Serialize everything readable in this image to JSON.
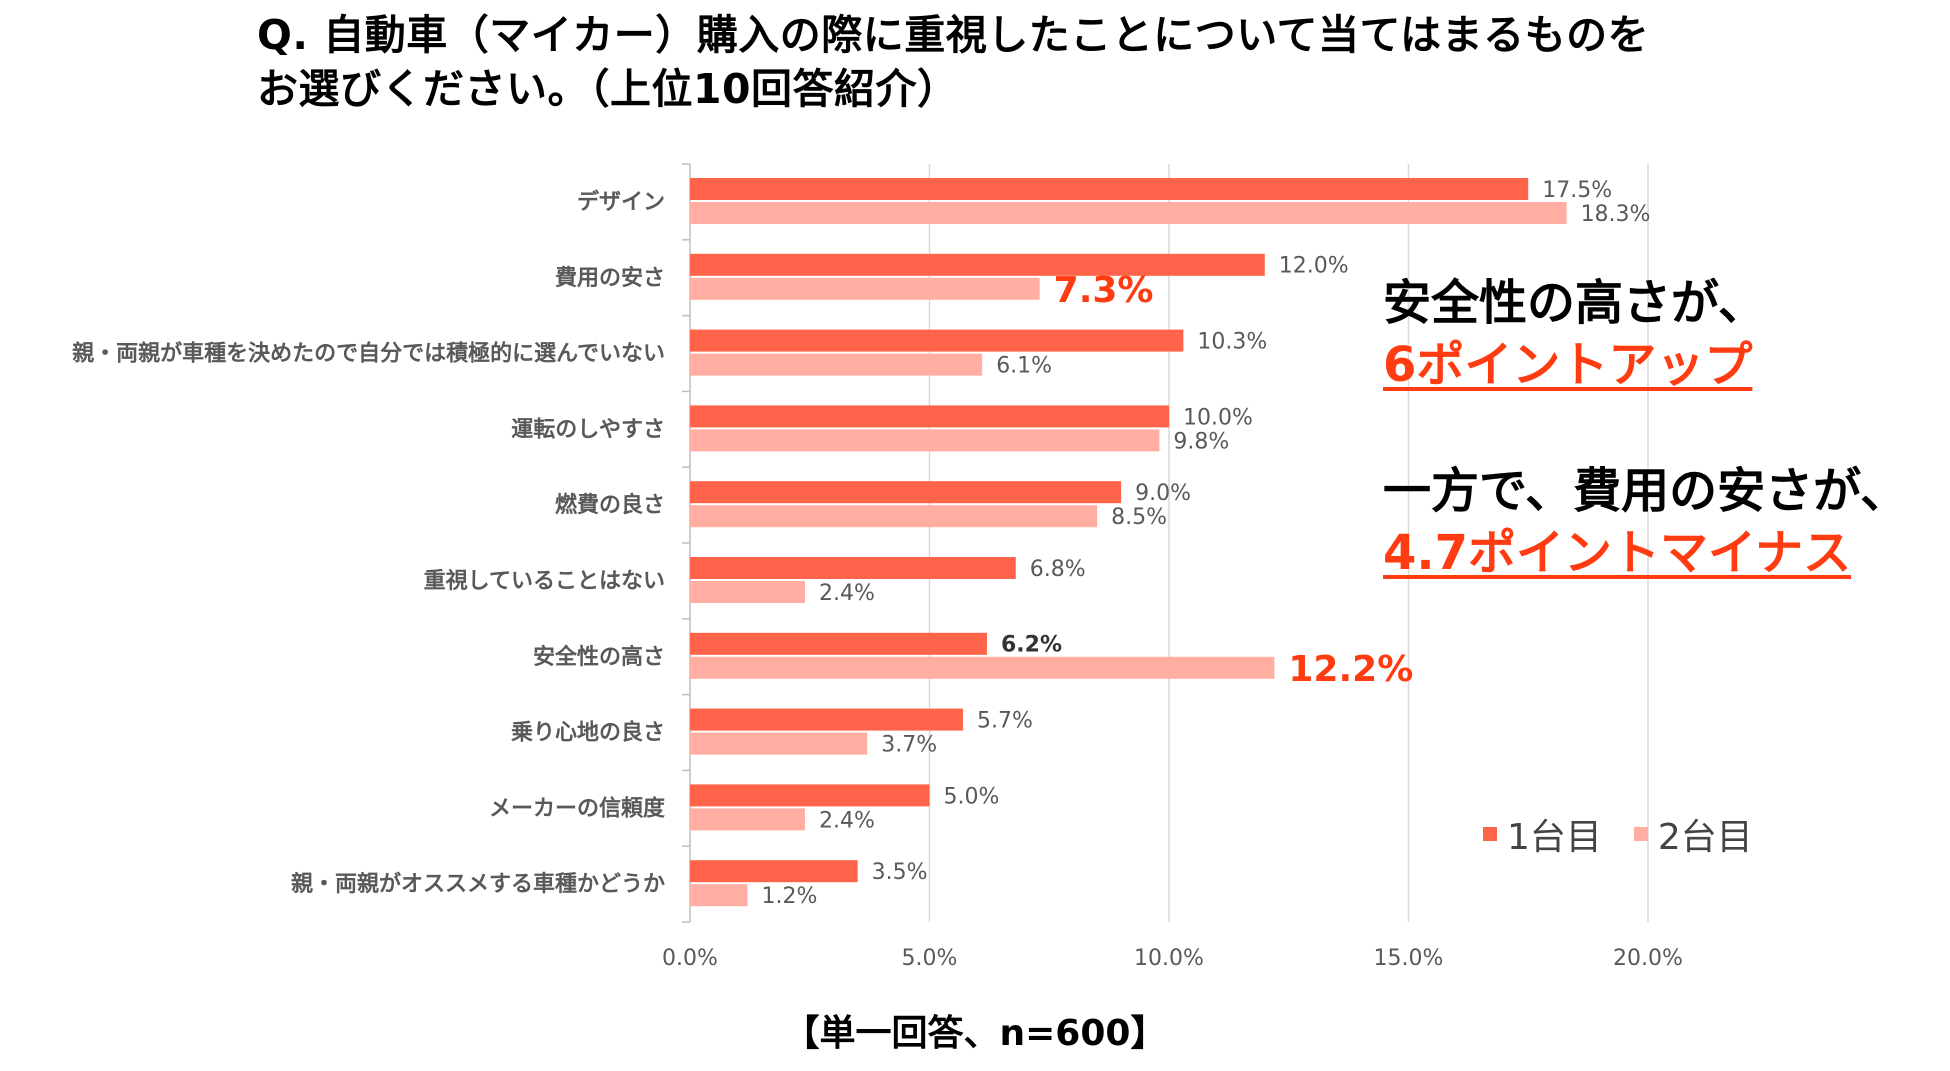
{
  "title": {
    "line1": "Q. 自動車（マイカー）購入の際に重視したことについて当てはまるものを",
    "line2": "お選びください。（上位10回答紹介）"
  },
  "callouts": {
    "a_line1": "安全性の高さが、",
    "a_line2": "6ポイントアップ",
    "b_line1": "一方で、費用の安さが、",
    "b_line2": "4.7ポイントマイナス"
  },
  "note": "【単一回答、n=600】",
  "colors": {
    "first": "#ff6349",
    "second": "#ffaea1",
    "highlight": "#ff3b12"
  },
  "chart_data": {
    "type": "bar",
    "orientation": "horizontal",
    "categories": [
      "デザイン",
      "費用の安さ",
      "親・両親が車種を決めたので自分では積極的に選んでいない",
      "運転のしやすさ",
      "燃費の良さ",
      "重視していることはない",
      "安全性の高さ",
      "乗り心地の良さ",
      "メーカーの信頼度",
      "親・両親がオススメする車種かどうか"
    ],
    "series": [
      {
        "name": "1台目",
        "values": [
          17.5,
          12.0,
          10.3,
          10.0,
          9.0,
          6.8,
          6.2,
          5.7,
          5.0,
          3.5
        ]
      },
      {
        "name": "2台目",
        "values": [
          18.3,
          7.3,
          6.1,
          9.8,
          8.5,
          2.4,
          12.2,
          3.7,
          2.4,
          1.2
        ]
      }
    ],
    "data_labels": [
      [
        "17.5%",
        "12.0%",
        "10.3%",
        "10.0%",
        "9.0%",
        "6.8%",
        "6.2%",
        "5.7%",
        "5.0%",
        "3.5%"
      ],
      [
        "18.3%",
        "7.3%",
        "6.1%",
        "9.8%",
        "8.5%",
        "2.4%",
        "12.2%",
        "3.7%",
        "2.4%",
        "1.2%"
      ]
    ],
    "emphasized_labels": [
      {
        "series": 1,
        "index": 1,
        "style": "highlight"
      },
      {
        "series": 0,
        "index": 6,
        "style": "bold"
      },
      {
        "series": 1,
        "index": 6,
        "style": "highlight"
      }
    ],
    "xlim": [
      0,
      20
    ],
    "x_ticks": [
      0,
      5,
      10,
      15,
      20
    ],
    "x_tick_labels": [
      "0.0%",
      "5.0%",
      "10.0%",
      "15.0%",
      "20.0%"
    ],
    "grid": true,
    "legend": {
      "position": "bottom-right",
      "entries": [
        "1台目",
        "2台目"
      ]
    }
  }
}
